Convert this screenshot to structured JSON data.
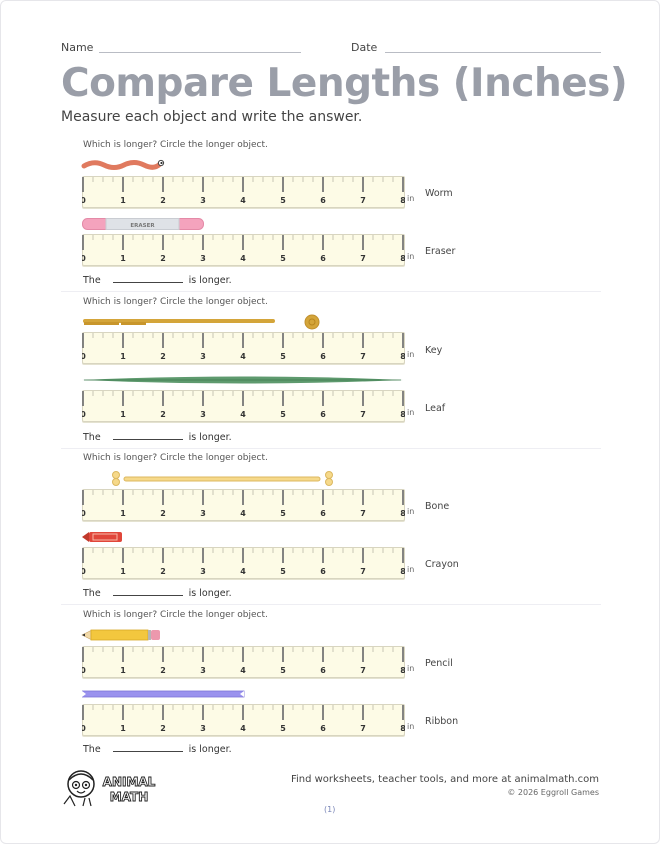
{
  "header": {
    "name_label": "Name",
    "date_label": "Date",
    "title": "Compare Lengths (Inches)",
    "subtitle": "Measure each object and write the answer."
  },
  "ruler": {
    "ticks": [
      "0",
      "1",
      "2",
      "3",
      "4",
      "5",
      "6",
      "7",
      "8"
    ],
    "unit": "in"
  },
  "problems": [
    {
      "prompt": "Which is longer? Circle the longer object.",
      "objects": [
        {
          "label": "Worm",
          "icon": "worm-icon",
          "length_in": 2,
          "color": "#e07a5f"
        },
        {
          "label": "Eraser",
          "icon": "eraser-icon",
          "length_in": 3,
          "color": "#f4a3bd",
          "text": "ERASER"
        }
      ],
      "answer_prefix": "The",
      "answer_suffix": "is longer."
    },
    {
      "prompt": "Which is longer? Circle the longer object.",
      "objects": [
        {
          "label": "Key",
          "icon": "key-icon",
          "length_in": 6,
          "color": "#d4a53a"
        },
        {
          "label": "Leaf",
          "icon": "leaf-icon",
          "length_in": 8,
          "color": "#5e9a6e"
        }
      ],
      "answer_prefix": "The",
      "answer_suffix": "is longer."
    },
    {
      "prompt": "Which is longer? Circle the longer object.",
      "objects": [
        {
          "label": "Bone",
          "icon": "bone-icon",
          "length_in": 6,
          "color": "#f6d98a"
        },
        {
          "label": "Crayon",
          "icon": "crayon-icon",
          "length_in": 1,
          "color": "#e0463a"
        }
      ],
      "answer_prefix": "The",
      "answer_suffix": "is longer."
    },
    {
      "prompt": "Which is longer? Circle the longer object.",
      "objects": [
        {
          "label": "Pencil",
          "icon": "pencil-icon",
          "length_in": 2,
          "color": "#f3c73e"
        },
        {
          "label": "Ribbon",
          "icon": "ribbon-icon",
          "length_in": 4,
          "color": "#9a92ee"
        }
      ],
      "answer_prefix": "The",
      "answer_suffix": "is longer."
    }
  ],
  "footer": {
    "logo_text_1": "ANIMAL",
    "logo_text_2": "MATH",
    "promo": "Find worksheets, teacher tools, and more at animalmath.com",
    "copyright": "© 2026 Eggroll Games",
    "page_number": "(1)"
  }
}
